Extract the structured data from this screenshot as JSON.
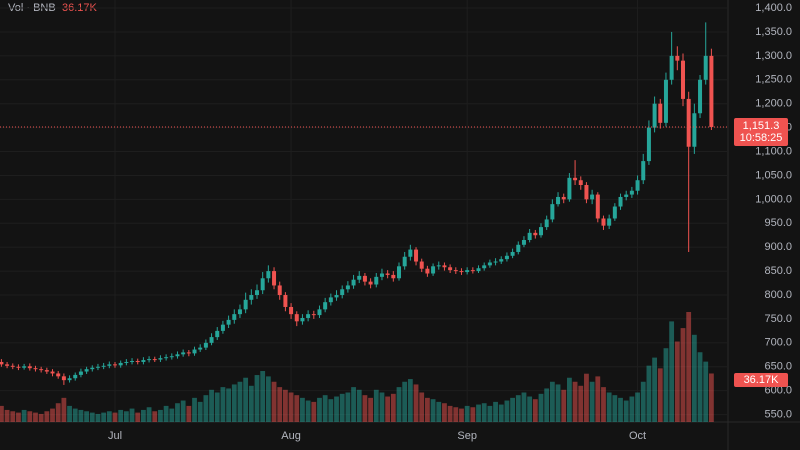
{
  "chart_data": {
    "type": "candlestick",
    "header": {
      "label": "Vol · BNB",
      "value_label": "36.17K"
    },
    "categories": [
      null,
      null,
      null,
      null,
      null,
      null,
      null,
      null,
      null,
      null,
      null,
      null,
      null,
      null,
      null,
      null,
      null,
      null,
      null,
      null,
      "Jul",
      null,
      null,
      null,
      null,
      null,
      null,
      null,
      null,
      null,
      null,
      null,
      null,
      null,
      null,
      null,
      null,
      null,
      null,
      null,
      null,
      null,
      null,
      null,
      null,
      null,
      null,
      null,
      null,
      null,
      null,
      "Aug",
      null,
      null,
      null,
      null,
      null,
      null,
      null,
      null,
      null,
      null,
      null,
      null,
      null,
      null,
      null,
      null,
      null,
      null,
      null,
      null,
      null,
      null,
      null,
      null,
      null,
      null,
      null,
      null,
      null,
      null,
      "Sep",
      null,
      null,
      null,
      null,
      null,
      null,
      null,
      null,
      null,
      null,
      null,
      null,
      null,
      null,
      null,
      null,
      null,
      null,
      null,
      null,
      null,
      null,
      null,
      null,
      null,
      null,
      null,
      null,
      null,
      "Oct",
      null,
      null,
      null,
      null,
      null,
      null,
      null,
      null,
      null,
      null,
      null,
      null,
      null
    ],
    "open": [
      660,
      655,
      652,
      650,
      648,
      651,
      647,
      645,
      643,
      640,
      636,
      630,
      622,
      626,
      633,
      640,
      645,
      648,
      650,
      652,
      655,
      653,
      658,
      660,
      662,
      660,
      664,
      666,
      665,
      668,
      670,
      672,
      676,
      680,
      678,
      686,
      690,
      700,
      712,
      725,
      738,
      748,
      760,
      770,
      790,
      800,
      810,
      835,
      850,
      820,
      800,
      775,
      760,
      745,
      752,
      760,
      758,
      770,
      785,
      795,
      800,
      812,
      820,
      832,
      840,
      828,
      822,
      838,
      845,
      842,
      835,
      860,
      880,
      895,
      870,
      855,
      845,
      860,
      862,
      858,
      852,
      850,
      848,
      852,
      850,
      856,
      862,
      868,
      870,
      875,
      882,
      890,
      905,
      915,
      930,
      925,
      942,
      958,
      990,
      1005,
      1000,
      1045,
      1040,
      1030,
      1000,
      1010,
      960,
      945,
      960,
      985,
      1005,
      1010,
      1018,
      1040,
      1080,
      1150,
      1200,
      1160,
      1250,
      1300,
      1290,
      1210,
      1110,
      1180,
      1250,
      1300
    ],
    "high": [
      666,
      660,
      657,
      655,
      656,
      657,
      652,
      650,
      648,
      645,
      641,
      636,
      632,
      638,
      646,
      650,
      653,
      656,
      658,
      661,
      660,
      663,
      666,
      668,
      667,
      670,
      672,
      671,
      674,
      676,
      678,
      682,
      686,
      685,
      692,
      697,
      707,
      720,
      733,
      746,
      757,
      770,
      780,
      805,
      812,
      822,
      848,
      862,
      858,
      828,
      806,
      783,
      766,
      760,
      768,
      767,
      778,
      794,
      803,
      810,
      820,
      829,
      842,
      850,
      846,
      835,
      846,
      855,
      852,
      850,
      868,
      890,
      905,
      900,
      876,
      861,
      866,
      870,
      868,
      864,
      858,
      856,
      858,
      858,
      862,
      868,
      874,
      877,
      881,
      889,
      897,
      912,
      923,
      938,
      936,
      950,
      966,
      1000,
      1015,
      1012,
      1055,
      1082,
      1048,
      1036,
      1020,
      1015,
      966,
      968,
      992,
      1012,
      1018,
      1026,
      1050,
      1095,
      1165,
      1215,
      1210,
      1265,
      1350,
      1320,
      1305,
      1225,
      1200,
      1260,
      1370,
      1315
    ],
    "low": [
      650,
      647,
      645,
      643,
      644,
      642,
      640,
      638,
      635,
      630,
      625,
      612,
      617,
      621,
      628,
      635,
      640,
      643,
      645,
      647,
      648,
      648,
      653,
      655,
      655,
      655,
      659,
      660,
      660,
      663,
      665,
      667,
      671,
      672,
      673,
      681,
      685,
      695,
      706,
      719,
      731,
      740,
      752,
      762,
      780,
      792,
      802,
      826,
      812,
      790,
      766,
      750,
      735,
      738,
      745,
      750,
      752,
      764,
      778,
      788,
      793,
      805,
      813,
      825,
      820,
      814,
      816,
      831,
      835,
      828,
      830,
      853,
      872,
      862,
      848,
      838,
      840,
      853,
      851,
      846,
      844,
      842,
      843,
      845,
      846,
      851,
      857,
      862,
      865,
      870,
      877,
      885,
      900,
      910,
      918,
      920,
      936,
      952,
      985,
      992,
      995,
      1030,
      1020,
      992,
      990,
      952,
      936,
      938,
      955,
      978,
      998,
      1003,
      1010,
      1032,
      1072,
      1140,
      1148,
      1152,
      1240,
      1270,
      1195,
      890,
      1095,
      1170,
      1240,
      1145
    ],
    "close": [
      655,
      652,
      650,
      648,
      651,
      647,
      645,
      643,
      640,
      636,
      630,
      622,
      626,
      633,
      640,
      645,
      648,
      650,
      652,
      655,
      653,
      658,
      660,
      662,
      660,
      664,
      666,
      665,
      668,
      670,
      672,
      676,
      680,
      678,
      686,
      690,
      700,
      712,
      725,
      738,
      748,
      760,
      770,
      790,
      800,
      810,
      835,
      850,
      820,
      800,
      775,
      760,
      745,
      752,
      760,
      758,
      770,
      785,
      795,
      800,
      812,
      820,
      832,
      840,
      828,
      822,
      838,
      845,
      842,
      835,
      860,
      880,
      895,
      870,
      855,
      845,
      860,
      862,
      858,
      852,
      850,
      848,
      852,
      850,
      856,
      862,
      868,
      870,
      875,
      882,
      890,
      905,
      915,
      930,
      925,
      942,
      958,
      990,
      1005,
      1000,
      1045,
      1040,
      1030,
      1000,
      1010,
      960,
      945,
      960,
      985,
      1005,
      1010,
      1018,
      1040,
      1080,
      1150,
      1200,
      1160,
      1250,
      1300,
      1290,
      1210,
      1110,
      1180,
      1250,
      1300,
      1151.3
    ],
    "volume": [
      12000,
      9000,
      8000,
      7000,
      9000,
      8000,
      7000,
      6000,
      8000,
      10000,
      14000,
      18000,
      12000,
      10000,
      9000,
      8000,
      7000,
      6000,
      7000,
      8000,
      7000,
      9000,
      8000,
      10000,
      7000,
      9000,
      11000,
      8000,
      9000,
      12000,
      10000,
      14000,
      16000,
      12000,
      18000,
      15000,
      20000,
      24000,
      22000,
      26000,
      25000,
      28000,
      30000,
      33000,
      27000,
      35000,
      38000,
      34000,
      30000,
      26000,
      24000,
      22000,
      20000,
      18000,
      16000,
      15000,
      18000,
      20000,
      17000,
      19000,
      21000,
      22000,
      26000,
      24000,
      20000,
      18000,
      24000,
      22000,
      19000,
      21000,
      26000,
      30000,
      32000,
      28000,
      22000,
      18000,
      17000,
      15000,
      14000,
      12000,
      11000,
      10000,
      12000,
      11000,
      13000,
      14000,
      12000,
      15000,
      13000,
      16000,
      18000,
      20000,
      22000,
      19000,
      17000,
      21000,
      25000,
      30000,
      28000,
      24000,
      33000,
      30000,
      27000,
      36000,
      30000,
      34000,
      26000,
      22000,
      20000,
      18000,
      16000,
      19000,
      22000,
      30000,
      42000,
      48000,
      40000,
      55000,
      75000,
      60000,
      70000,
      82000,
      65000,
      52000,
      45000,
      36170
    ],
    "volume_value_labels": {
      "125": "36.17K"
    },
    "up_color": "#26a69a",
    "down_color": "#ef5350",
    "ylim": [
      534.5,
      1416.8
    ],
    "yticks": [
      {
        "value": 550,
        "label": "550.0"
      },
      {
        "value": 600,
        "label": "600.0"
      },
      {
        "value": 650,
        "label": "650.0"
      },
      {
        "value": 700,
        "label": "700.0"
      },
      {
        "value": 750,
        "label": "750.0"
      },
      {
        "value": 800,
        "label": "800.0"
      },
      {
        "value": 850,
        "label": "850.0"
      },
      {
        "value": 900,
        "label": "900.0"
      },
      {
        "value": 950,
        "label": "950.0"
      },
      {
        "value": 1000,
        "label": "1,000.0"
      },
      {
        "value": 1050,
        "label": "1,050.0"
      },
      {
        "value": 1100,
        "label": "1,100.0"
      },
      {
        "value": 1150,
        "label": "1,150.0"
      },
      {
        "value": 1200,
        "label": "1,200.0"
      },
      {
        "value": 1250,
        "label": "1,250.0"
      },
      {
        "value": 1300,
        "label": "1,300.0"
      },
      {
        "value": 1350,
        "label": "1,350.0"
      },
      {
        "value": 1400,
        "label": "1,400.0"
      }
    ],
    "last_price": {
      "value": 1151.3,
      "label": "1,151.3",
      "countdown": "10:58:25"
    },
    "grid": true
  }
}
